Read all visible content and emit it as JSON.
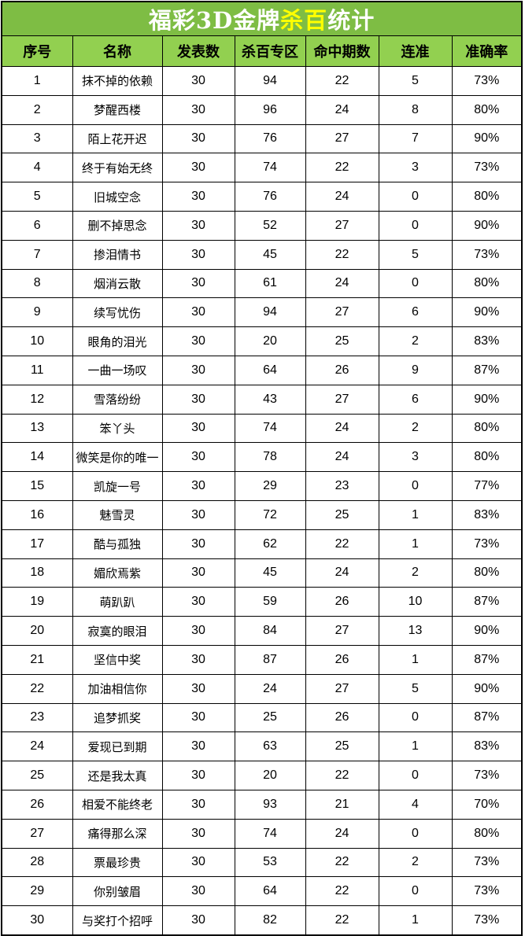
{
  "colors": {
    "title_bg": "#7EBD44",
    "header_bg": "#92D050",
    "title_text": "#FFFFFF",
    "highlight_text": "#FFFF00",
    "grid_border": "#000000",
    "row_bg": "#FFFFFF",
    "cell_text": "#000000"
  },
  "chart_data": {
    "type": "table",
    "title": "福彩3D金牌杀百统计",
    "title_parts": {
      "prefix": "福彩3D金牌",
      "highlight": "杀百",
      "suffix": "统计"
    },
    "column_keys": [
      "index",
      "name",
      "published",
      "kill-zone",
      "hits",
      "streak",
      "accuracy"
    ],
    "columns": [
      "序号",
      "名称",
      "发表数",
      "杀百专区",
      "命中期数",
      "连准",
      "准确率"
    ],
    "rows": [
      [
        1,
        "抹不掉的依赖",
        30,
        94,
        22,
        5,
        "73%"
      ],
      [
        2,
        "梦醒西楼",
        30,
        96,
        24,
        8,
        "80%"
      ],
      [
        3,
        "陌上花开迟",
        30,
        76,
        27,
        7,
        "90%"
      ],
      [
        4,
        "终于有始无终",
        30,
        74,
        22,
        3,
        "73%"
      ],
      [
        5,
        "旧城空念",
        30,
        76,
        24,
        0,
        "80%"
      ],
      [
        6,
        "删不掉思念",
        30,
        52,
        27,
        0,
        "90%"
      ],
      [
        7,
        "掺泪情书",
        30,
        45,
        22,
        5,
        "73%"
      ],
      [
        8,
        "烟消云散",
        30,
        61,
        24,
        0,
        "80%"
      ],
      [
        9,
        "续写忧伤",
        30,
        94,
        27,
        6,
        "90%"
      ],
      [
        10,
        "眼角的泪光",
        30,
        20,
        25,
        2,
        "83%"
      ],
      [
        11,
        "一曲一场叹",
        30,
        64,
        26,
        9,
        "87%"
      ],
      [
        12,
        "雪落纷纷",
        30,
        43,
        27,
        6,
        "90%"
      ],
      [
        13,
        "笨丫头",
        30,
        74,
        24,
        2,
        "80%"
      ],
      [
        14,
        "微笑是你的唯一",
        30,
        78,
        24,
        3,
        "80%"
      ],
      [
        15,
        "凯旋一号",
        30,
        29,
        23,
        0,
        "77%"
      ],
      [
        16,
        "魅雪灵",
        30,
        72,
        25,
        1,
        "83%"
      ],
      [
        17,
        "酷与孤独",
        30,
        62,
        22,
        1,
        "73%"
      ],
      [
        18,
        "媚欣焉紫",
        30,
        45,
        24,
        2,
        "80%"
      ],
      [
        19,
        "萌趴趴",
        30,
        59,
        26,
        10,
        "87%"
      ],
      [
        20,
        "寂寞的眼泪",
        30,
        84,
        27,
        13,
        "90%"
      ],
      [
        21,
        "坚信中奖",
        30,
        87,
        26,
        1,
        "87%"
      ],
      [
        22,
        "加油相信你",
        30,
        24,
        27,
        5,
        "90%"
      ],
      [
        23,
        "追梦抓奖",
        30,
        25,
        26,
        0,
        "87%"
      ],
      [
        24,
        "爱现已到期",
        30,
        63,
        25,
        1,
        "83%"
      ],
      [
        25,
        "还是我太真",
        30,
        20,
        22,
        0,
        "73%"
      ],
      [
        26,
        "相爱不能终老",
        30,
        93,
        21,
        4,
        "70%"
      ],
      [
        27,
        "痛得那么深",
        30,
        74,
        24,
        0,
        "80%"
      ],
      [
        28,
        "票最珍贵",
        30,
        53,
        22,
        2,
        "73%"
      ],
      [
        29,
        "你别皱眉",
        30,
        64,
        22,
        0,
        "73%"
      ],
      [
        30,
        "与奖打个招呼",
        30,
        82,
        22,
        1,
        "73%"
      ]
    ]
  }
}
